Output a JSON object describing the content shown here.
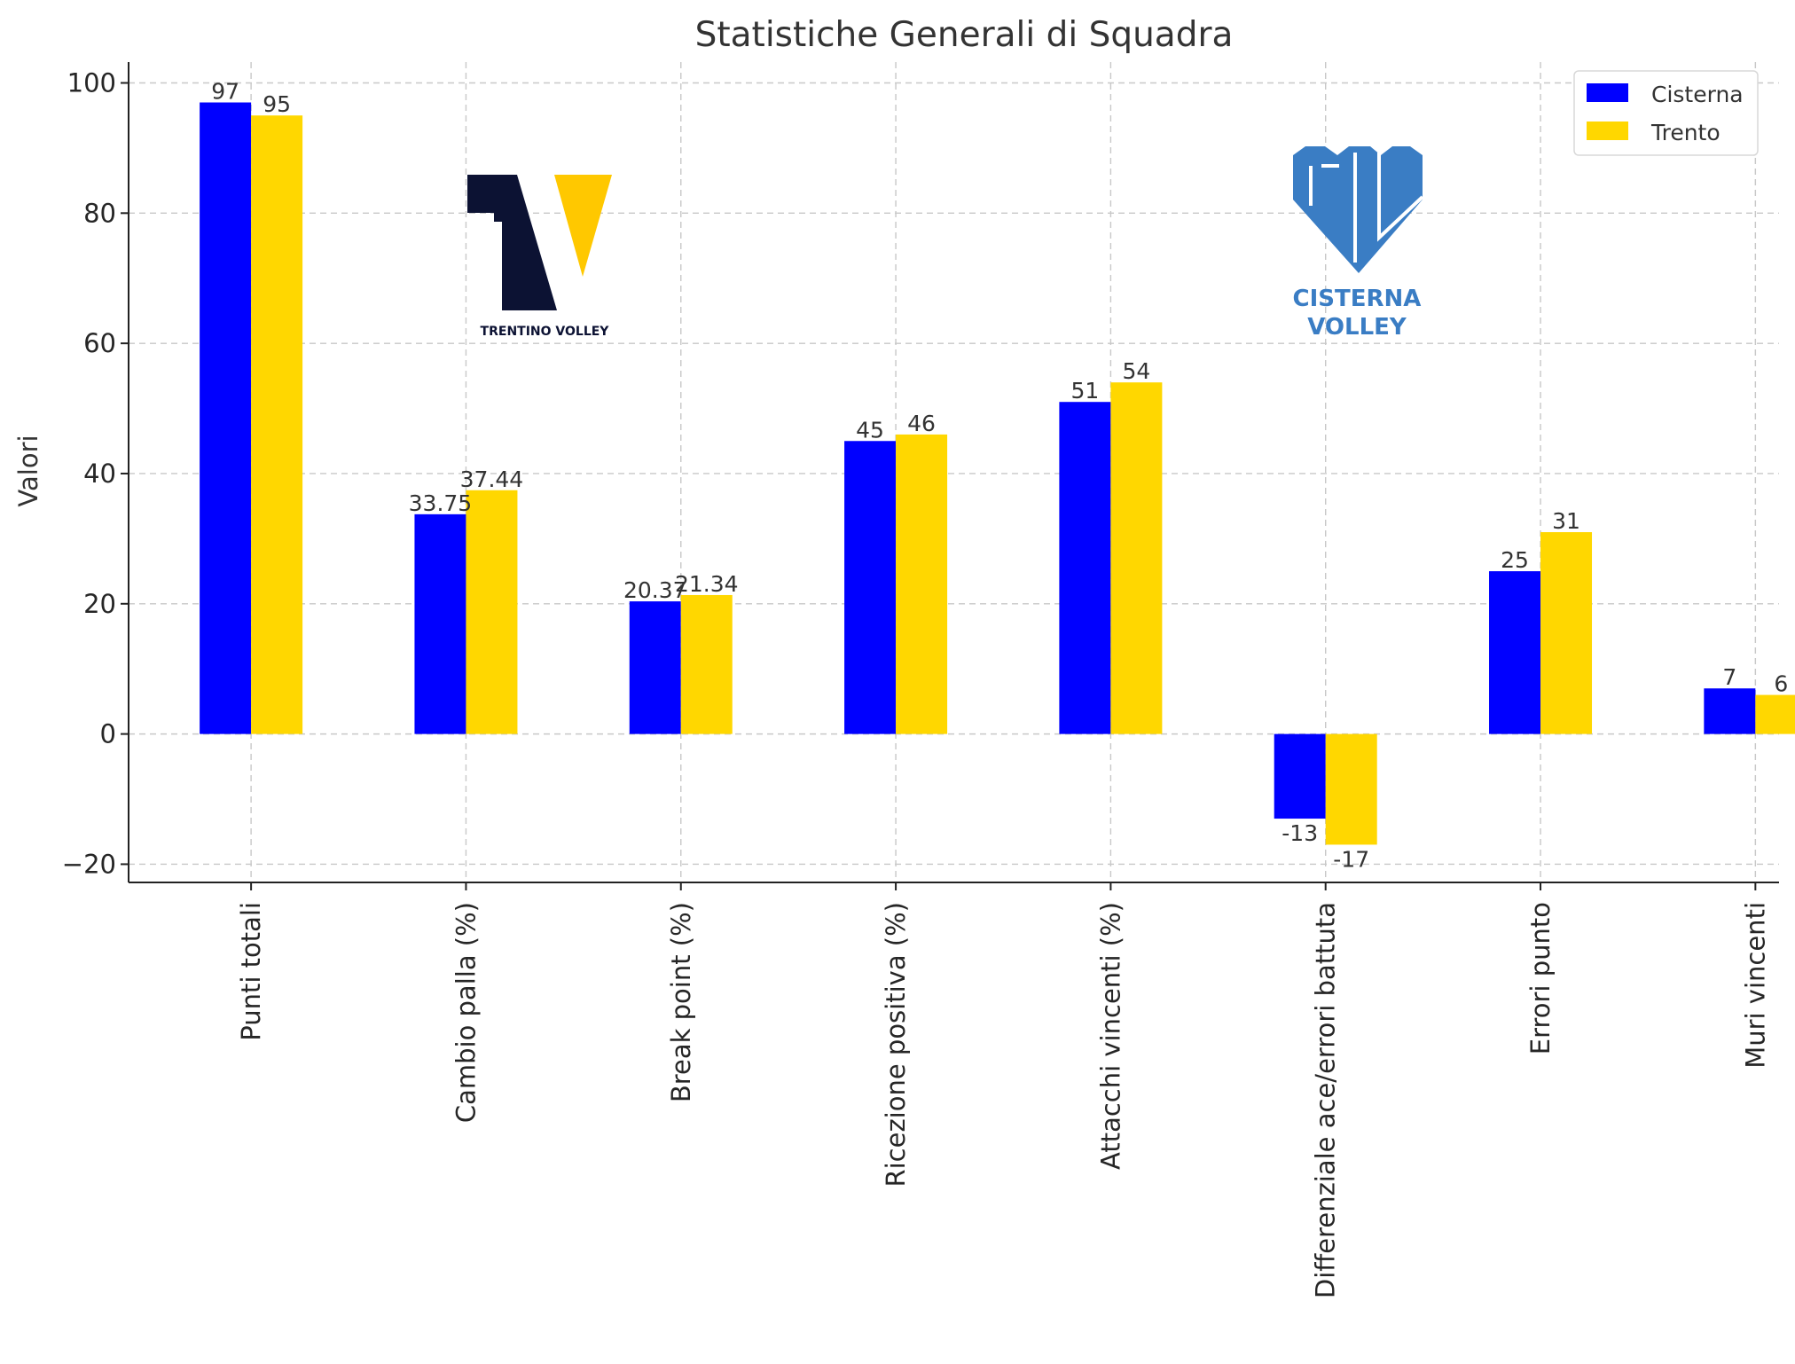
{
  "chart_data": {
    "type": "bar",
    "title": "Statistiche Generali di Squadra",
    "xlabel": "",
    "ylabel": "Valori",
    "ylim": [
      -22.8,
      103.2
    ],
    "yticks": [
      -20,
      0,
      20,
      40,
      60,
      80,
      100
    ],
    "ytick_labels": [
      "−20",
      "0",
      "20",
      "40",
      "60",
      "80",
      "100"
    ],
    "grid": true,
    "legend_position": "top-right",
    "categories": [
      "Punti totali",
      "Cambio palla (%)",
      "Break point (%)",
      "Ricezione positiva (%)",
      "Attacchi vincenti (%)",
      "Differenziale ace/errori battuta",
      "Errori punto",
      "Muri vincenti"
    ],
    "series": [
      {
        "name": "Cisterna",
        "color": "#0000ff",
        "values": [
          97,
          33.75,
          20.37,
          45,
          51,
          -13,
          25,
          7
        ],
        "labels": [
          "97",
          "33.75",
          "20.37",
          "45",
          "51",
          "-13",
          "25",
          "7"
        ]
      },
      {
        "name": "Trento",
        "color": "#ffd700",
        "values": [
          95,
          37.44,
          21.34,
          46,
          54,
          -17,
          31,
          6
        ],
        "labels": [
          "95",
          "37.44",
          "21.34",
          "46",
          "54",
          "-17",
          "31",
          "6"
        ]
      }
    ]
  },
  "logos": {
    "trentino": {
      "text": "TRENTINO VOLLEY",
      "dark_color": "#0c1233",
      "accent_color": "#ffc800"
    },
    "cisterna": {
      "line1": "CISTERNA",
      "line2": "VOLLEY",
      "color": "#3a7dc4"
    }
  }
}
